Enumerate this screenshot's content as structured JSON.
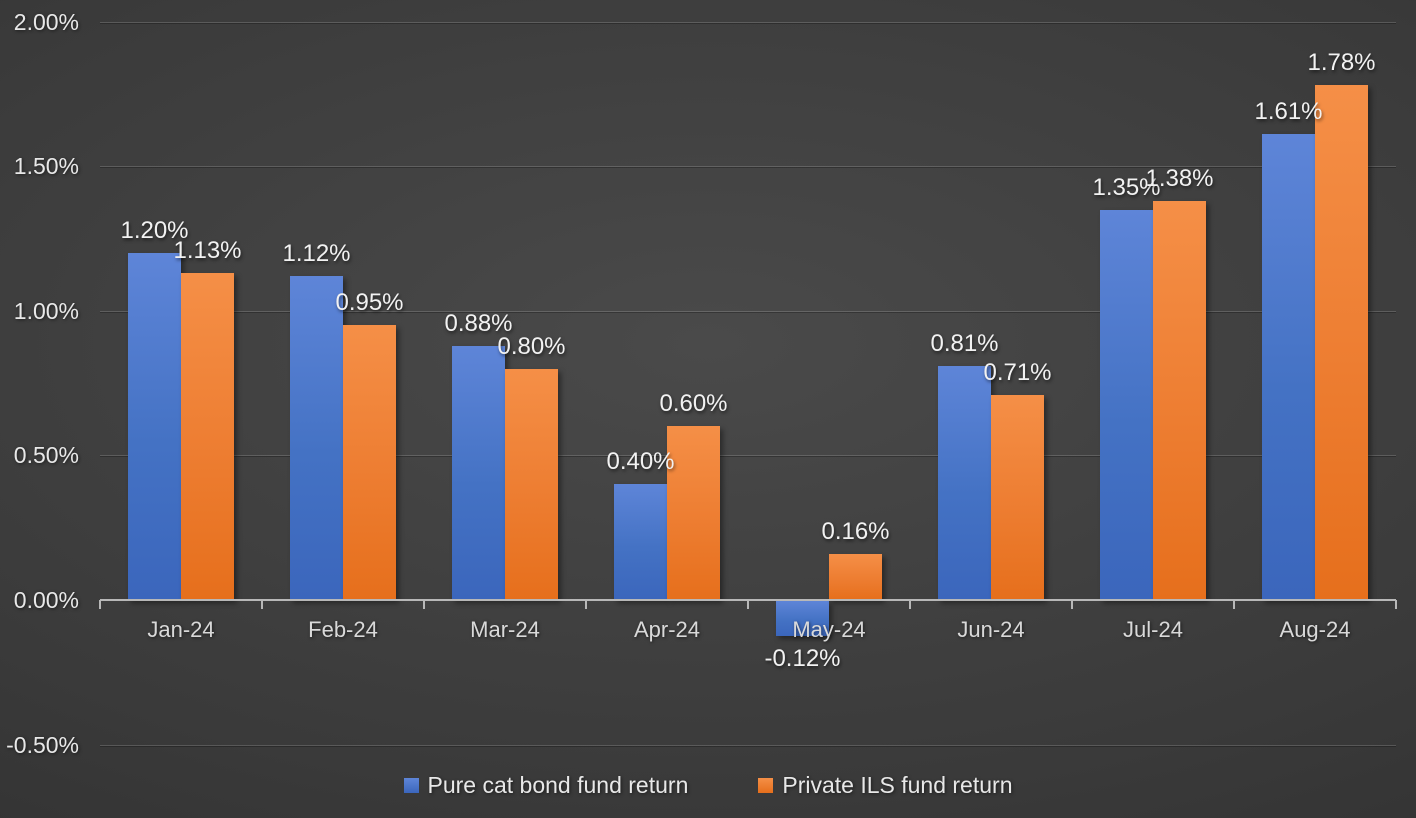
{
  "chart_data": {
    "type": "bar",
    "title": "",
    "xlabel": "",
    "ylabel": "",
    "categories": [
      "Jan-24",
      "Feb-24",
      "Mar-24",
      "Apr-24",
      "May-24",
      "Jun-24",
      "Jul-24",
      "Aug-24"
    ],
    "series": [
      {
        "name": "Pure cat bond fund return",
        "color": "#4472c4",
        "color_top": "#5e85d8",
        "color_bottom": "#3b66bc",
        "values": [
          1.2,
          1.12,
          0.88,
          0.4,
          -0.12,
          0.81,
          1.35,
          1.61
        ],
        "labels": [
          "1.20%",
          "1.12%",
          "0.88%",
          "0.40%",
          "-0.12%",
          "0.81%",
          "1.35%",
          "1.61%"
        ]
      },
      {
        "name": "Private ILS fund return",
        "color": "#ed7d31",
        "color_top": "#f58f47",
        "color_bottom": "#e66f1c",
        "values": [
          1.13,
          0.95,
          0.8,
          0.6,
          0.16,
          0.71,
          1.38,
          1.78
        ],
        "labels": [
          "1.13%",
          "0.95%",
          "0.80%",
          "0.60%",
          "0.16%",
          "0.71%",
          "1.38%",
          "1.78%"
        ]
      }
    ],
    "y_axis": {
      "min": -0.5,
      "max": 2.0,
      "ticks": [
        {
          "value": 2.0,
          "label": "2.00%"
        },
        {
          "value": 1.5,
          "label": "1.50%"
        },
        {
          "value": 1.0,
          "label": "1.00%"
        },
        {
          "value": 0.5,
          "label": "0.50%"
        },
        {
          "value": 0.0,
          "label": "0.00%"
        },
        {
          "value": -0.5,
          "label": "-0.50%"
        }
      ]
    },
    "grid": true,
    "legend_position": "bottom",
    "value_label_format": "0.00%"
  },
  "colors": {
    "background_center": "#4a4a4a",
    "background_edge": "#2b2b2b",
    "gridline": "rgba(255,255,255,0.16)",
    "axis_line": "#b8b8b8",
    "tick_label": "#e8e8e8",
    "category_label": "#d9d9d9",
    "value_label": "#f2f2f2",
    "legend_text": "#e8e8e8"
  }
}
